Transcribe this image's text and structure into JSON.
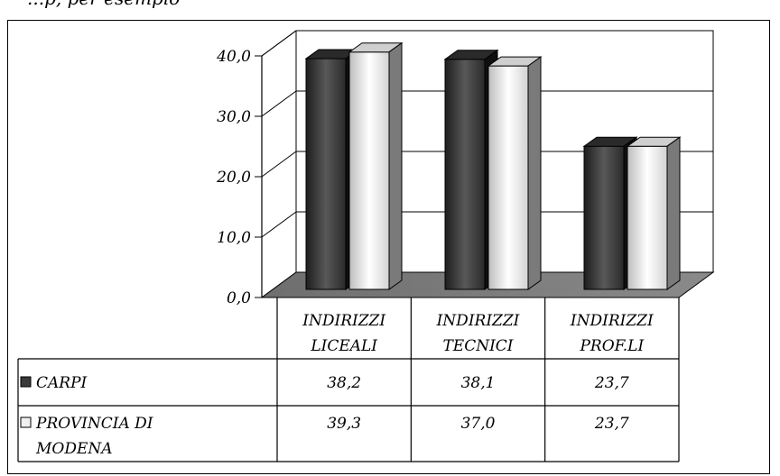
{
  "header_fragment": "...p, per esempio",
  "chart_data": {
    "type": "bar",
    "categories": [
      "INDIRIZZI LICEALI",
      "INDIRIZZI TECNICI",
      "INDIRIZZI PROF.LI"
    ],
    "category_lines": [
      [
        "INDIRIZZI",
        "LICEALI"
      ],
      [
        "INDIRIZZI",
        "TECNICI"
      ],
      [
        "INDIRIZZI",
        "PROF.LI"
      ]
    ],
    "series": [
      {
        "name": "CARPI",
        "name_lines": [
          "CARPI"
        ],
        "values": [
          38.2,
          38.1,
          23.7
        ],
        "labels": [
          "38,2",
          "38,1",
          "23,7"
        ],
        "color": "#3a3a3a"
      },
      {
        "name": "PROVINCIA DI MODENA",
        "name_lines": [
          "PROVINCIA DI",
          "MODENA"
        ],
        "values": [
          39.3,
          37.0,
          23.7
        ],
        "labels": [
          "39,3",
          "37,0",
          "23,7"
        ],
        "color": "#f0f0f0"
      }
    ],
    "ylim": [
      0,
      40
    ],
    "yticks": [
      "0,0",
      "10,0",
      "20,0",
      "30,0",
      "40,0"
    ],
    "grid": true,
    "legend": "data-table"
  }
}
